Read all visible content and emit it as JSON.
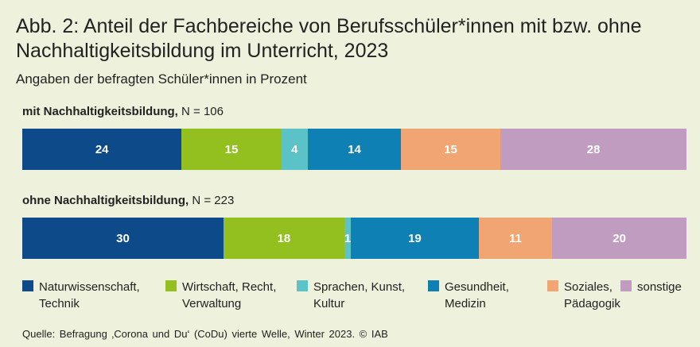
{
  "title": "Abb. 2: Anteil der Fachbereiche von Berufsschüler*innen mit bzw. ohne Nachhaltigkeitsbildung im Unterricht, 2023",
  "subtitle": "Angaben der befragten Schüler*innen in Prozent",
  "source": "Quelle: Befragung ‚Corona und Du‘ (CoDu) vierte Welle, Winter 2023. © IAB",
  "colors": {
    "background": "#eef1dc",
    "categories": [
      "#0c4a8a",
      "#93c01f",
      "#5bc2c7",
      "#0f80b3",
      "#f0a572",
      "#c09cc1"
    ]
  },
  "chart_data": {
    "type": "bar",
    "orientation": "horizontal-stacked-100",
    "title": "Abb. 2: Anteil der Fachbereiche von Berufsschüler*innen mit bzw. ohne Nachhaltigkeitsbildung im Unterricht, 2023",
    "subtitle": "Angaben der befragten Schüler*innen in Prozent",
    "unit": "Prozent",
    "categories": [
      {
        "name": "Naturwissenschaft, Technik",
        "lines": [
          "Naturwissenschaft,",
          "Technik"
        ]
      },
      {
        "name": "Wirtschaft, Recht, Verwaltung",
        "lines": [
          "Wirtschaft, Recht,",
          "Verwaltung"
        ]
      },
      {
        "name": "Sprachen, Kunst, Kultur",
        "lines": [
          "Sprachen, Kunst,",
          "Kultur"
        ]
      },
      {
        "name": "Gesundheit, Medizin",
        "lines": [
          "Gesundheit,",
          "Medizin"
        ]
      },
      {
        "name": "Soziales, Pädagogik",
        "lines": [
          "Soziales,",
          "Pädagogik"
        ]
      },
      {
        "name": "sonstige",
        "lines": [
          "sonstige"
        ]
      }
    ],
    "groups": [
      {
        "label_bold": "mit Nachhaltigkeitsbildung,",
        "label_n": "N = 106",
        "values": [
          24,
          15,
          4,
          14,
          15,
          28
        ]
      },
      {
        "label_bold": "ohne Nachhaltigkeitsbildung,",
        "label_n": "N = 223",
        "values": [
          30,
          18,
          1,
          19,
          11,
          20
        ]
      }
    ],
    "legend_position": "bottom"
  }
}
